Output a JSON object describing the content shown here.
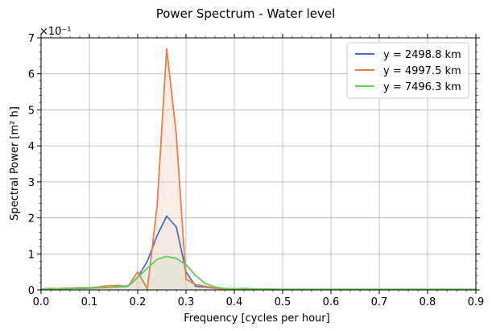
{
  "chart_data": {
    "type": "line",
    "title": "Power Spectrum - Water level",
    "xlabel": "Frequency [cycles per hour]",
    "ylabel": "Spectral Power [m² h]",
    "y_multiplier": "×10⁻¹",
    "xlim": [
      0.0,
      0.9
    ],
    "ylim": [
      0,
      0.7
    ],
    "x_ticks": [
      0.0,
      0.1,
      0.2,
      0.3,
      0.4,
      0.5,
      0.6,
      0.7,
      0.8,
      0.9
    ],
    "x_tick_labels": [
      "0.0",
      "0.1",
      "0.2",
      "0.3",
      "0.4",
      "0.5",
      "0.6",
      "0.7",
      "0.8",
      "0.9"
    ],
    "y_ticks": [
      0,
      0.1,
      0.2,
      0.3,
      0.4,
      0.5,
      0.6,
      0.7
    ],
    "y_tick_labels": [
      "0",
      "1",
      "2",
      "3",
      "4",
      "5",
      "6",
      "7"
    ],
    "grid": true,
    "legend_position": "top-right",
    "series": [
      {
        "name": "y = 2498.8 km",
        "legend_label": "y = 2498.8 km",
        "color": "#4472c4",
        "fill": false,
        "x": [
          0.0,
          0.02,
          0.04,
          0.06,
          0.08,
          0.1,
          0.12,
          0.14,
          0.16,
          0.18,
          0.2,
          0.22,
          0.24,
          0.26,
          0.28,
          0.3,
          0.32,
          0.34,
          0.36,
          0.38,
          0.4,
          0.42,
          0.44,
          0.5,
          0.6,
          0.7,
          0.8,
          0.9
        ],
        "values": [
          0.002,
          0.004,
          0.003,
          0.004,
          0.004,
          0.005,
          0.006,
          0.007,
          0.008,
          0.01,
          0.035,
          0.08,
          0.15,
          0.205,
          0.175,
          0.05,
          0.01,
          0.008,
          0.005,
          0.003,
          0.002,
          0.002,
          0.001,
          0.001,
          0.001,
          0.001,
          0.001,
          0.001
        ]
      },
      {
        "name": "y = 4997.5 km",
        "legend_label": "y = 4997.5 km",
        "color": "#ed7d44",
        "fill": true,
        "fill_color": "#f9d9c7",
        "x": [
          0.0,
          0.02,
          0.04,
          0.06,
          0.08,
          0.1,
          0.12,
          0.14,
          0.16,
          0.18,
          0.2,
          0.22,
          0.24,
          0.26,
          0.28,
          0.3,
          0.32,
          0.34,
          0.36,
          0.38,
          0.4,
          0.42,
          0.44,
          0.5,
          0.6,
          0.7,
          0.8,
          0.9
        ],
        "values": [
          0.002,
          0.003,
          0.004,
          0.005,
          0.006,
          0.006,
          0.008,
          0.012,
          0.012,
          0.01,
          0.05,
          0.003,
          0.23,
          0.67,
          0.43,
          0.03,
          0.015,
          0.01,
          0.005,
          0.003,
          0.002,
          0.002,
          0.001,
          0.001,
          0.001,
          0.001,
          0.001,
          0.001
        ]
      },
      {
        "name": "y = 7496.3 km",
        "legend_label": "y = 7496.3 km",
        "color": "#66cc55",
        "fill": false,
        "x": [
          0.0,
          0.02,
          0.04,
          0.06,
          0.08,
          0.1,
          0.12,
          0.14,
          0.16,
          0.18,
          0.2,
          0.22,
          0.24,
          0.26,
          0.28,
          0.3,
          0.32,
          0.34,
          0.36,
          0.38,
          0.4,
          0.42,
          0.44,
          0.5,
          0.6,
          0.7,
          0.8,
          0.9
        ],
        "values": [
          0.002,
          0.004,
          0.003,
          0.004,
          0.005,
          0.006,
          0.006,
          0.007,
          0.008,
          0.012,
          0.035,
          0.06,
          0.085,
          0.093,
          0.088,
          0.07,
          0.04,
          0.018,
          0.008,
          0.004,
          0.003,
          0.004,
          0.003,
          0.002,
          0.002,
          0.002,
          0.002,
          0.002
        ]
      }
    ]
  }
}
